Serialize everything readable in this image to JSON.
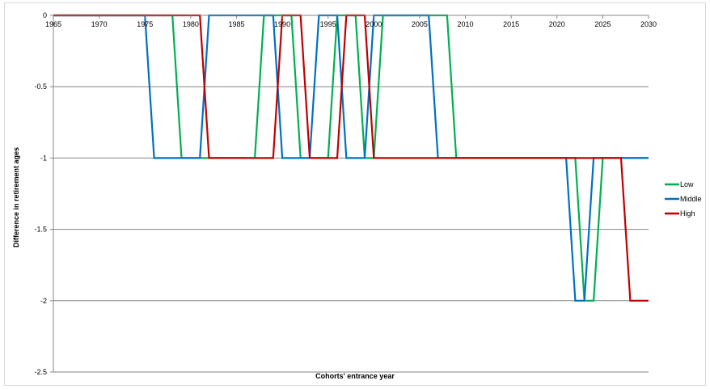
{
  "chart_data": {
    "type": "line",
    "title": "",
    "xlabel": "Cohorts' entrance year",
    "ylabel": "Difference in retirement ages",
    "xlim": [
      1965,
      2030
    ],
    "ylim": [
      -2.5,
      0
    ],
    "x_ticks": [
      "1965",
      "1970",
      "1975",
      "1980",
      "1985",
      "1990",
      "1995",
      "2000",
      "2005",
      "2010",
      "2015",
      "2020",
      "2025",
      "2030"
    ],
    "y_ticks": [
      "0",
      "-0.5",
      "-1",
      "-1.5",
      "-2",
      "-2.5"
    ],
    "grid": "horizontal",
    "legend_position": "right",
    "series": [
      {
        "name": "Low",
        "color": "#00b050",
        "points": [
          [
            1965,
            0
          ],
          [
            1978,
            0
          ],
          [
            1979,
            -1
          ],
          [
            1987,
            -1
          ],
          [
            1988,
            0
          ],
          [
            1991,
            0
          ],
          [
            1992,
            -1
          ],
          [
            1995,
            -1
          ],
          [
            1996,
            0
          ],
          [
            1998,
            0
          ],
          [
            1999,
            -1
          ],
          [
            2000,
            -1
          ],
          [
            2001,
            0
          ],
          [
            2008,
            0
          ],
          [
            2009,
            -1
          ],
          [
            2022,
            -1
          ],
          [
            2023,
            -2
          ],
          [
            2024,
            -2
          ],
          [
            2025,
            -1
          ],
          [
            2030,
            -1
          ]
        ]
      },
      {
        "name": "Middle",
        "color": "#0070c0",
        "points": [
          [
            1965,
            0
          ],
          [
            1975,
            0
          ],
          [
            1976,
            -1
          ],
          [
            1981,
            -1
          ],
          [
            1982,
            0
          ],
          [
            1989,
            0
          ],
          [
            1990,
            -1
          ],
          [
            1993,
            -1
          ],
          [
            1994,
            0
          ],
          [
            1996,
            0
          ],
          [
            1997,
            -1
          ],
          [
            1999,
            -1
          ],
          [
            2000,
            0
          ],
          [
            2006,
            0
          ],
          [
            2007,
            -1
          ],
          [
            2021,
            -1
          ],
          [
            2022,
            -2
          ],
          [
            2023,
            -2
          ],
          [
            2024,
            -1
          ],
          [
            2030,
            -1
          ]
        ]
      },
      {
        "name": "High",
        "color": "#c00000",
        "points": [
          [
            1965,
            0
          ],
          [
            1981,
            0
          ],
          [
            1982,
            -1
          ],
          [
            1989,
            -1
          ],
          [
            1990,
            0
          ],
          [
            1992,
            0
          ],
          [
            1993,
            -1
          ],
          [
            1996,
            -1
          ],
          [
            1997,
            0
          ],
          [
            1999,
            0
          ],
          [
            2000,
            -1
          ],
          [
            2027,
            -1
          ],
          [
            2028,
            -2
          ],
          [
            2030,
            -2
          ]
        ]
      }
    ]
  }
}
